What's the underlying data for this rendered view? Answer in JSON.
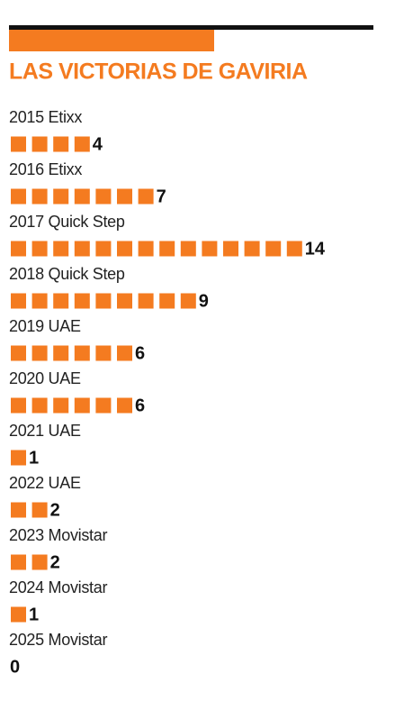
{
  "chart_data": {
    "type": "pictogram",
    "title": "LAS VICTORIAS DE GAVIRIA",
    "color": "#f47b20",
    "categories": [
      "2015 Etixx",
      "2016 Etixx",
      "2017 Quick Step",
      "2018 Quick Step",
      "2019 UAE",
      "2020 UAE",
      "2021 UAE",
      "2022 UAE",
      "2023 Movistar",
      "2024 Movistar",
      "2025 Movistar"
    ],
    "values": [
      4,
      7,
      14,
      9,
      6,
      6,
      1,
      2,
      2,
      1,
      0
    ]
  }
}
